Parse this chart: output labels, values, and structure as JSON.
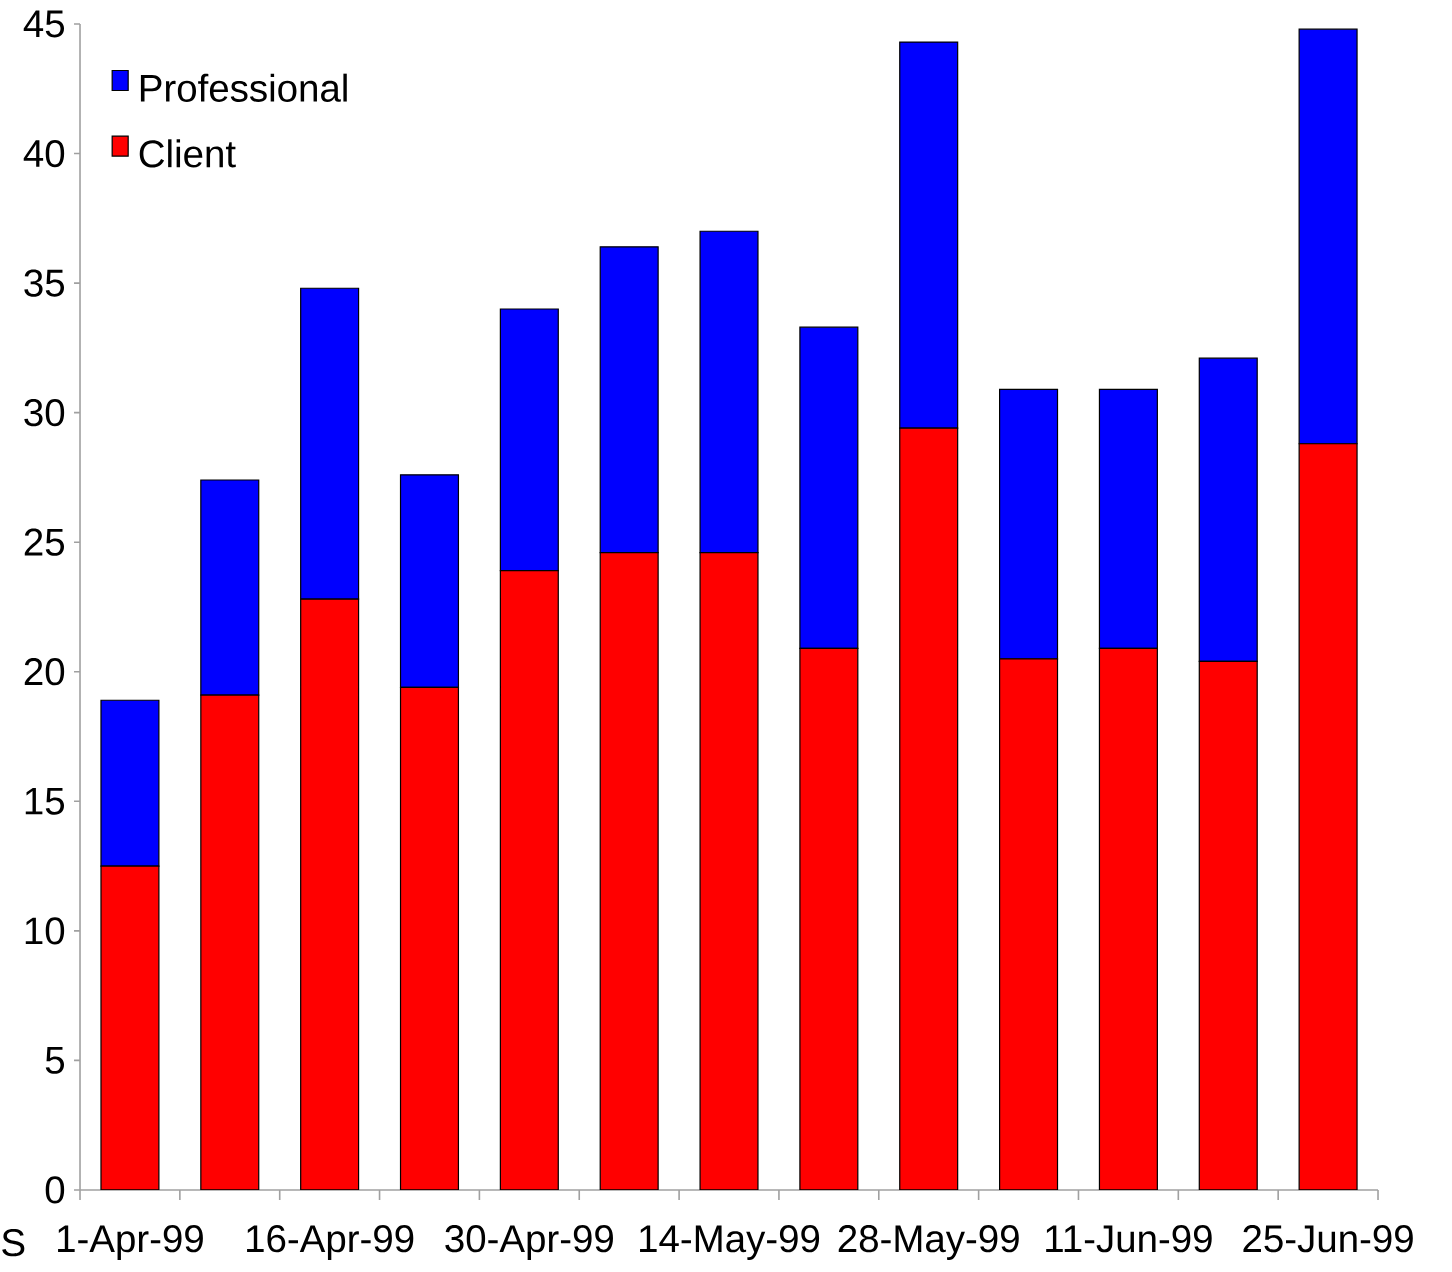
{
  "chart_data": {
    "type": "bar",
    "stacked": true,
    "categories": [
      "1-Apr-99",
      null,
      "16-Apr-99",
      null,
      "30-Apr-99",
      null,
      "14-May-99",
      null,
      "28-May-99",
      null,
      "11-Jun-99",
      null,
      "25-Jun-99"
    ],
    "series": [
      {
        "name": "Client",
        "color": "#ff0000",
        "values": [
          12.5,
          19.1,
          22.8,
          19.4,
          23.9,
          24.6,
          24.6,
          20.9,
          29.4,
          20.5,
          20.9,
          20.4,
          28.8
        ]
      },
      {
        "name": "Professional",
        "color": "#0000ff",
        "values": [
          6.4,
          8.3,
          12.0,
          8.2,
          10.1,
          11.8,
          12.4,
          12.4,
          14.9,
          10.4,
          10.0,
          11.7,
          16.0
        ]
      }
    ],
    "ylim": [
      0,
      45
    ],
    "yticks": [
      0,
      5,
      10,
      15,
      20,
      25,
      30,
      35,
      40,
      45
    ],
    "legend": "top left",
    "annotations": [
      "S"
    ]
  }
}
